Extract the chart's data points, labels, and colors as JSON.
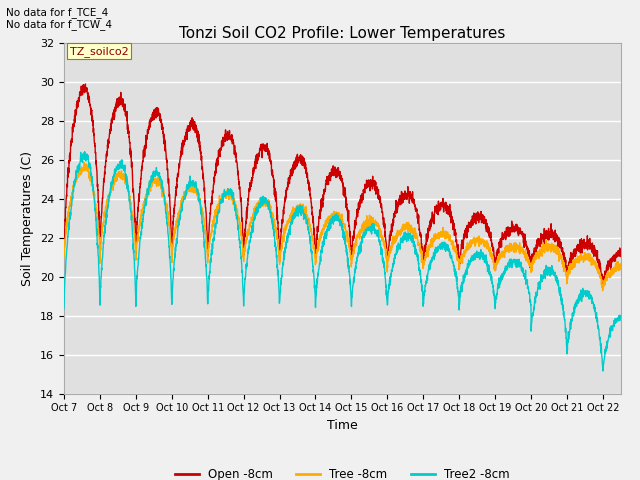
{
  "title": "Tonzi Soil CO2 Profile: Lower Temperatures",
  "xlabel": "Time",
  "ylabel": "Soil Temperatures (C)",
  "ylim": [
    14,
    32
  ],
  "yticks": [
    14,
    16,
    18,
    20,
    22,
    24,
    26,
    28,
    30,
    32
  ],
  "annotation_lines": [
    "No data for f_TCE_4",
    "No data for f_TCW_4"
  ],
  "legend_label": "TZ_soilco2",
  "legend_items": [
    {
      "label": "Open -8cm",
      "color": "#cc0000"
    },
    {
      "label": "Tree -8cm",
      "color": "#ffaa00"
    },
    {
      "label": "Tree2 -8cm",
      "color": "#00cccc"
    }
  ],
  "background_color": "#e8e8e8",
  "plot_bg_color": "#e0e0e0",
  "title_fontsize": 11,
  "axis_fontsize": 9,
  "tick_fontsize": 8
}
